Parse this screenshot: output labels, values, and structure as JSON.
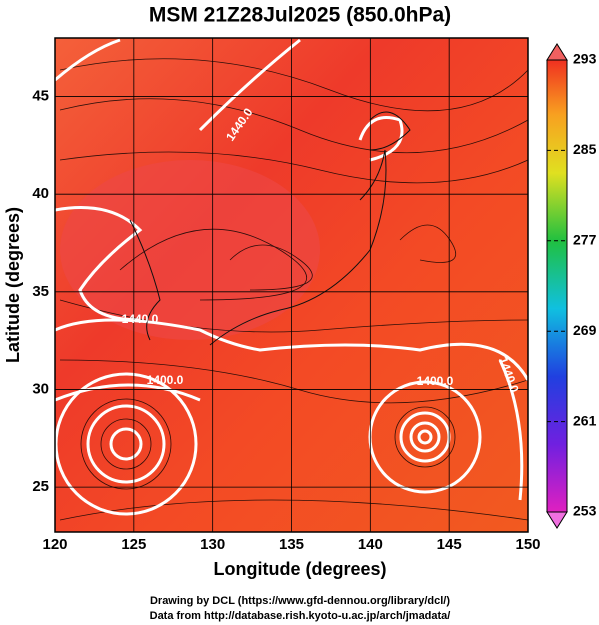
{
  "chart_data": {
    "type": "map",
    "title": "MSM 21Z28Jul2025 (850.0hPa)",
    "x_label": "Longitude (degrees)",
    "y_label": "Latitude  (degrees)",
    "xlim": [
      120,
      150
    ],
    "ylim": [
      22.7,
      48
    ],
    "xticks": [
      120,
      125,
      130,
      135,
      140,
      145,
      150
    ],
    "yticks": [
      25,
      30,
      35,
      40,
      45
    ],
    "grid": true,
    "colorbar": {
      "lim": [
        253,
        293
      ],
      "ticks": [
        253,
        261,
        269,
        277,
        285,
        293
      ]
    },
    "contour_labels": [
      "1440.0",
      "1440.0",
      "1400.0",
      "1400.0",
      "1440.0"
    ],
    "footer": [
      "Drawing by DCL (https://www.gfd-dennou.org/library/dcl/)",
      "Data from http://database.rish.kyoto-u.ac.jp/arch/jmadata/"
    ]
  }
}
